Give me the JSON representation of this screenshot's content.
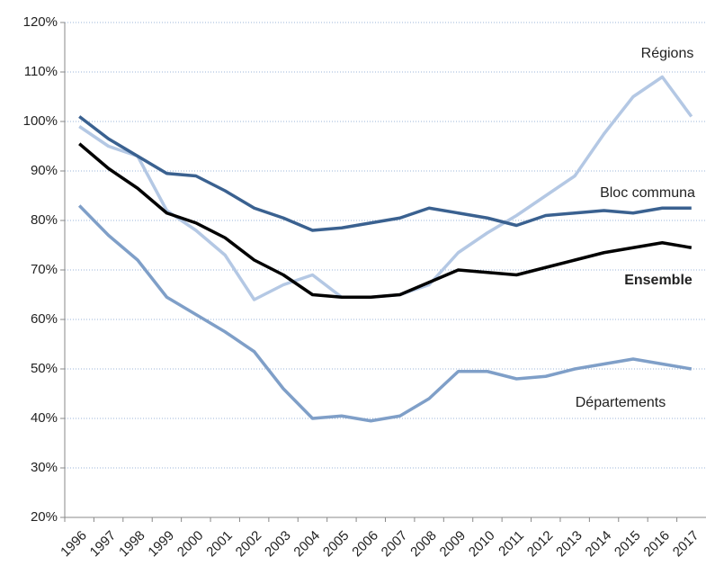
{
  "chart_data": {
    "type": "line",
    "categories": [
      "1996",
      "1997",
      "1998",
      "1999",
      "2000",
      "2001",
      "2002",
      "2003",
      "2004",
      "2005",
      "2006",
      "2007",
      "2008",
      "2009",
      "2010",
      "2011",
      "2012",
      "2013",
      "2014",
      "2015",
      "2016",
      "2017"
    ],
    "series": [
      {
        "name": "Régions",
        "color": "#b4c8e4",
        "values": [
          99,
          95,
          93,
          82,
          78,
          73,
          64,
          67,
          69,
          64.5,
          64.5,
          65,
          67,
          73.5,
          77.5,
          81,
          85,
          89,
          97.5,
          105,
          109,
          101
        ]
      },
      {
        "name": "Bloc communa",
        "color": "#3a6190",
        "values": [
          101,
          96.5,
          93,
          89.5,
          89,
          86,
          82.5,
          80.5,
          78,
          78.5,
          79.5,
          80.5,
          82.5,
          81.5,
          80.5,
          79,
          81,
          81.5,
          82,
          81.5,
          82.5,
          82.5
        ]
      },
      {
        "name": "Ensemble",
        "color": "#000000",
        "values": [
          95.5,
          90.5,
          86.5,
          81.5,
          79.5,
          76.5,
          72,
          69,
          65,
          64.5,
          64.5,
          65,
          67.5,
          70,
          69.5,
          69,
          70.5,
          72,
          73.5,
          74.5,
          75.5,
          74.5
        ]
      },
      {
        "name": "Départements",
        "color": "#7f9fc8",
        "values": [
          83,
          77,
          72,
          64.5,
          61,
          57.5,
          53.5,
          46,
          40,
          40.5,
          39.5,
          40.5,
          44,
          49.5,
          49.5,
          48,
          48.5,
          50,
          51,
          52,
          51,
          50
        ]
      }
    ],
    "ylim": [
      20,
      120
    ],
    "yticks": [
      {
        "value": 20,
        "label": "20%"
      },
      {
        "value": 30,
        "label": "30%"
      },
      {
        "value": 40,
        "label": "40%"
      },
      {
        "value": 50,
        "label": "50%"
      },
      {
        "value": 60,
        "label": "60%"
      },
      {
        "value": 70,
        "label": "70%"
      },
      {
        "value": 80,
        "label": "80%"
      },
      {
        "value": 90,
        "label": "90%"
      },
      {
        "value": 100,
        "label": "100%"
      },
      {
        "value": 110,
        "label": "110%"
      },
      {
        "value": 120,
        "label": "120%"
      }
    ],
    "grid": true
  }
}
